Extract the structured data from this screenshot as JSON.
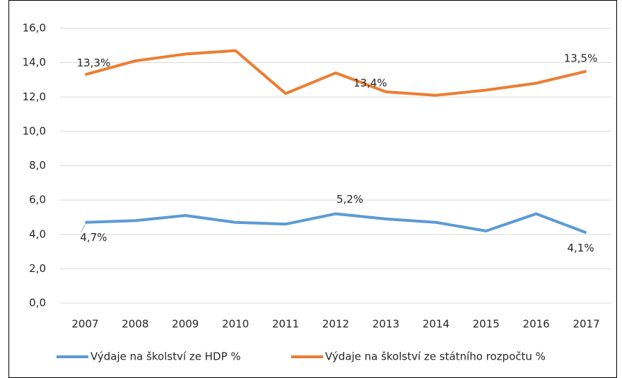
{
  "chart_data": {
    "type": "line",
    "categories": [
      "2007",
      "2008",
      "2009",
      "2010",
      "2011",
      "2012",
      "2013",
      "2014",
      "2015",
      "2016",
      "2017"
    ],
    "series": [
      {
        "name": "Výdaje na školství ze HDP %",
        "color": "#5b9bd5",
        "values": [
          4.7,
          4.8,
          5.1,
          4.7,
          4.6,
          5.2,
          4.9,
          4.7,
          4.2,
          5.2,
          4.1
        ],
        "value_labels": [
          "4,7%",
          null,
          null,
          null,
          null,
          "5,2%",
          null,
          null,
          null,
          null,
          "4,1%"
        ]
      },
      {
        "name": "Výdaje na školství ze státního rozpočtu %",
        "color": "#ed7d31",
        "values": [
          13.3,
          14.1,
          14.5,
          14.7,
          12.2,
          13.4,
          12.3,
          12.1,
          12.4,
          12.8,
          13.5
        ],
        "value_labels": [
          "13,3%",
          null,
          null,
          null,
          null,
          "13,4%",
          null,
          null,
          null,
          null,
          "13,5%"
        ]
      }
    ],
    "ylim": [
      0,
      16
    ],
    "yticks": [
      {
        "value": 0,
        "label": "0,0"
      },
      {
        "value": 2,
        "label": "2,0"
      },
      {
        "value": 4,
        "label": "4,0"
      },
      {
        "value": 6,
        "label": "6,0"
      },
      {
        "value": 8,
        "label": "8,0"
      },
      {
        "value": 10,
        "label": "10,0"
      },
      {
        "value": 12,
        "label": "12,0"
      },
      {
        "value": 14,
        "label": "14,0"
      },
      {
        "value": 16,
        "label": "16,0"
      }
    ],
    "grid": true,
    "legend": "bottom"
  }
}
